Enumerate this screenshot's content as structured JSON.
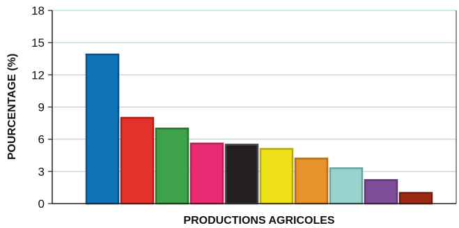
{
  "chart_data": {
    "type": "bar",
    "xlabel": "PRODUCTIONS AGRICOLES",
    "ylabel": "POURCENTAGE (%)",
    "ylim": [
      0,
      18
    ],
    "yticks": [
      0,
      3,
      6,
      9,
      12,
      15,
      18
    ],
    "grid": true,
    "values": [
      13.9,
      8.0,
      7.0,
      5.6,
      5.5,
      5.1,
      4.2,
      3.3,
      2.2,
      1.0
    ],
    "colors": [
      "#0f73b8",
      "#e1332c",
      "#3da24a",
      "#ea2b73",
      "#231f20",
      "#eee11a",
      "#e8922b",
      "#9ad2ce",
      "#7f4e9b",
      "#9a2a14"
    ],
    "outline_colors": [
      "#0b4f86",
      "#a8221c",
      "#2b7335",
      "#b31f57",
      "#4a4a4a",
      "#b3a914",
      "#b36e1f",
      "#6fa39f",
      "#5e3973",
      "#6e1d0e"
    ],
    "grid_color": "#9fd3e0",
    "axis_color": "#231f20"
  }
}
